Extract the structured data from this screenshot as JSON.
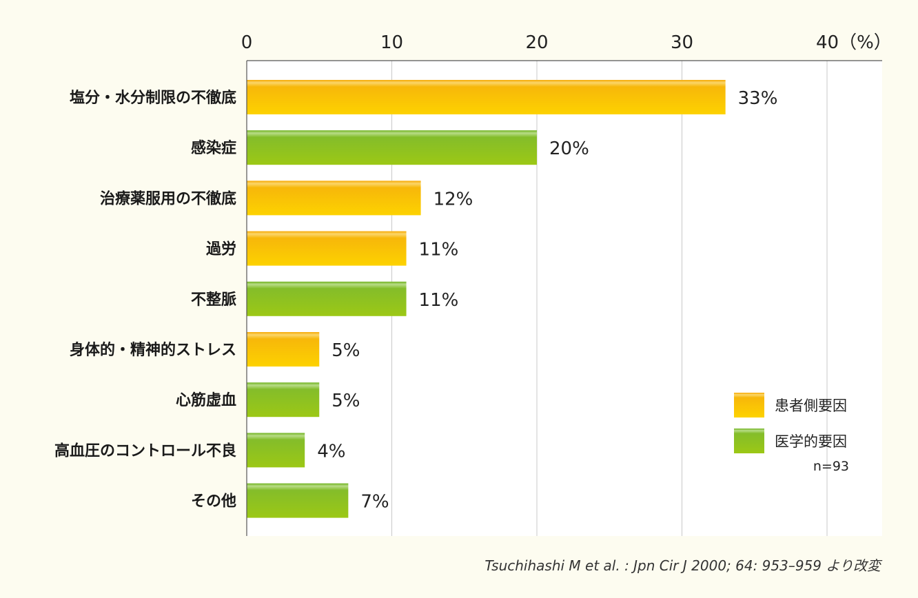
{
  "chart_data": {
    "type": "bar",
    "orientation": "horizontal",
    "categories": [
      "塩分・水分制限の不徹底",
      "感染症",
      "治療薬服用の不徹底",
      "過労",
      "不整脈",
      "身体的・精神的ストレス",
      "心筋虚血",
      "高血圧のコントロール不良",
      "その他"
    ],
    "values": [
      33,
      20,
      12,
      11,
      11,
      5,
      5,
      4,
      7
    ],
    "value_labels": [
      "33%",
      "20%",
      "12%",
      "11%",
      "11%",
      "5%",
      "5%",
      "4%",
      "7%"
    ],
    "groups": [
      "patient",
      "medical",
      "patient",
      "patient",
      "medical",
      "patient",
      "medical",
      "medical",
      "medical"
    ],
    "series": [
      {
        "key": "patient",
        "name": "患者側要因",
        "color": "#f9c200"
      },
      {
        "key": "medical",
        "name": "医学的要因",
        "color": "#8cc11f"
      }
    ],
    "xlim": [
      0,
      42
    ],
    "xticks": [
      0,
      10,
      20,
      30,
      40
    ],
    "tick_labels": [
      "0",
      "10",
      "20",
      "30",
      "40（%）"
    ],
    "grid": true,
    "legend_position": "bottom-right",
    "sample_note": "n=93",
    "source": "Tsuchihashi M et al. : Jpn Cir J 2000; 64: 953–959 より改変"
  }
}
